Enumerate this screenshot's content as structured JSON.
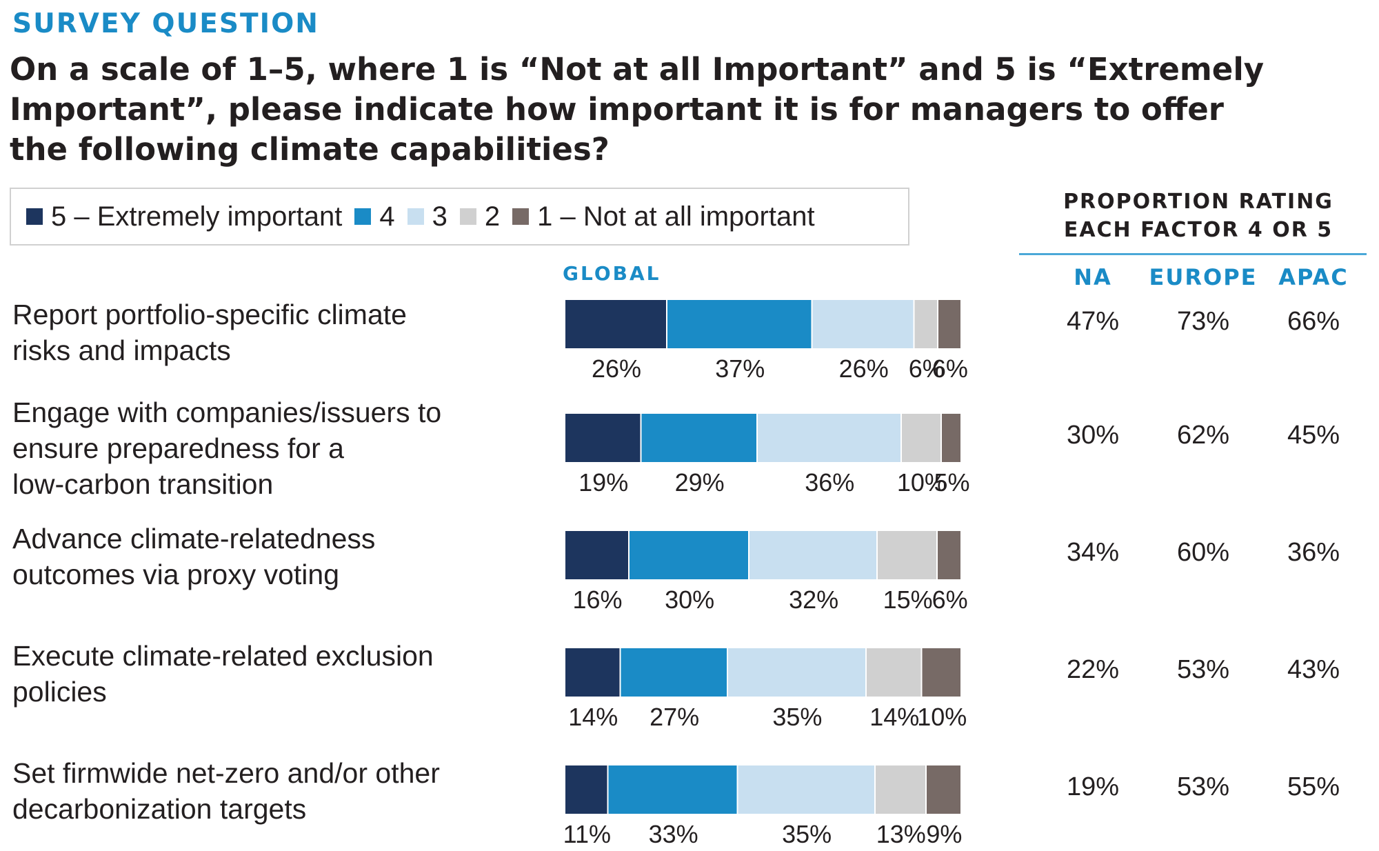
{
  "header": {
    "kicker": "SURVEY QUESTION",
    "question": "On a scale of 1–5, where 1 is “Not at all Important” and 5 is “Extremely Important”, please indicate how important it is for managers to offer the following climate capabilities?"
  },
  "legend": [
    {
      "label": "5 – Extremely important",
      "color": "#1d355e"
    },
    {
      "label": "4",
      "color": "#1a8bc6"
    },
    {
      "label": "3",
      "color": "#c8dff0"
    },
    {
      "label": "2",
      "color": "#d0d0d0"
    },
    {
      "label": "1 – Not at all important",
      "color": "#776a66"
    }
  ],
  "global_label": "GLOBAL",
  "proportion": {
    "title_line1": "PROPORTION RATING",
    "title_line2": "EACH FACTOR 4 OR 5",
    "columns": [
      "NA",
      "EUROPE",
      "APAC"
    ]
  },
  "chart_data": {
    "type": "bar",
    "stacked": true,
    "orientation": "horizontal",
    "categories": [
      "Report portfolio-specific climate risks and impacts",
      "Engage with companies/issuers to ensure preparedness for a low-carbon transition",
      "Advance climate-relatedness outcomes via proxy voting",
      "Execute climate-related exclusion policies",
      "Set firmwide net-zero and/or other decarbonization targets"
    ],
    "category_lines": [
      [
        "Report portfolio-specific climate",
        "risks and impacts"
      ],
      [
        "Engage with companies/issuers to",
        "ensure preparedness for a",
        "low-carbon transition"
      ],
      [
        "Advance climate-relatedness",
        "outcomes via proxy voting"
      ],
      [
        "Execute climate-related exclusion",
        "policies"
      ],
      [
        "Set firmwide net-zero and/or other",
        "decarbonization targets"
      ]
    ],
    "series": [
      {
        "name": "5 – Extremely important",
        "values": [
          26,
          19,
          16,
          14,
          11
        ]
      },
      {
        "name": "4",
        "values": [
          37,
          29,
          30,
          27,
          33
        ]
      },
      {
        "name": "3",
        "values": [
          26,
          36,
          32,
          35,
          35
        ]
      },
      {
        "name": "2",
        "values": [
          6,
          10,
          15,
          14,
          13
        ]
      },
      {
        "name": "1 – Not at all important",
        "values": [
          6,
          5,
          6,
          10,
          9
        ]
      }
    ],
    "regional_4_or_5": {
      "NA": [
        "47%",
        "30%",
        "34%",
        "22%",
        "19%"
      ],
      "EUROPE": [
        "73%",
        "62%",
        "60%",
        "53%",
        "53%"
      ],
      "APAC": [
        "66%",
        "45%",
        "36%",
        "43%",
        "55%"
      ]
    },
    "xlim": [
      0,
      100
    ],
    "legend_position": "top"
  }
}
